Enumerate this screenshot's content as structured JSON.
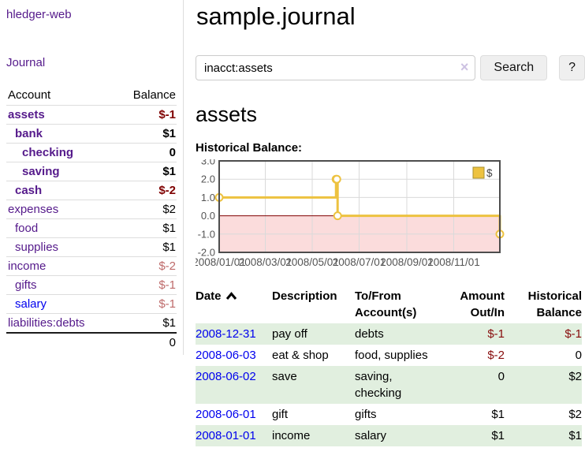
{
  "app": {
    "title": "hledger-web",
    "nav": {
      "journal": "Journal"
    }
  },
  "sidebar": {
    "headers": {
      "account": "Account",
      "balance": "Balance"
    },
    "accounts": [
      {
        "name": "assets",
        "balance": "$-1",
        "depth": 1,
        "bold": true,
        "link_color": "purple",
        "balance_style": "negstrong"
      },
      {
        "name": "bank",
        "balance": "$1",
        "depth": 2,
        "bold": true,
        "link_color": "purple",
        "balance_style": "plain"
      },
      {
        "name": "checking",
        "balance": "0",
        "depth": 3,
        "bold": true,
        "link_color": "purple",
        "balance_style": "plain"
      },
      {
        "name": "saving",
        "balance": "$1",
        "depth": 3,
        "bold": true,
        "link_color": "purple",
        "balance_style": "plain"
      },
      {
        "name": "cash",
        "balance": "$-2",
        "depth": 2,
        "bold": true,
        "link_color": "purple",
        "balance_style": "negstrong"
      },
      {
        "name": "expenses",
        "balance": "$2",
        "depth": 1,
        "bold": false,
        "link_color": "purple",
        "balance_style": "plain"
      },
      {
        "name": "food",
        "balance": "$1",
        "depth": 2,
        "bold": false,
        "link_color": "purple",
        "balance_style": "plain"
      },
      {
        "name": "supplies",
        "balance": "$1",
        "depth": 2,
        "bold": false,
        "link_color": "purple",
        "balance_style": "plain"
      },
      {
        "name": "income",
        "balance": "$-2",
        "depth": 1,
        "bold": false,
        "link_color": "purple",
        "balance_style": "negweak"
      },
      {
        "name": "gifts",
        "balance": "$-1",
        "depth": 2,
        "bold": false,
        "link_color": "purple",
        "balance_style": "negweak"
      },
      {
        "name": "salary",
        "balance": "$-1",
        "depth": 2,
        "bold": false,
        "link_color": "blue",
        "balance_style": "negweak"
      },
      {
        "name": "liabilities:debts",
        "balance": "$1",
        "depth": 1,
        "bold": false,
        "link_color": "purple",
        "balance_style": "plain"
      }
    ],
    "total": "0"
  },
  "main": {
    "title": "sample.journal",
    "search": {
      "value": "inacct:assets",
      "clear_icon": "×",
      "button": "Search",
      "help_button": "?"
    },
    "account_title": "assets",
    "chart_title": "Historical Balance:"
  },
  "chart_data": {
    "type": "line",
    "step": true,
    "title": "Historical Balance:",
    "series": [
      {
        "name": "$",
        "color": "#EDC240",
        "points": [
          [
            "2008-01-01",
            1
          ],
          [
            "2008-06-01",
            2
          ],
          [
            "2008-06-02",
            2
          ],
          [
            "2008-06-03",
            0
          ],
          [
            "2008-12-31",
            -1
          ]
        ]
      }
    ],
    "x_range": [
      "2008-01-01",
      "2008-12-31"
    ],
    "x_tick_labels": [
      "2008/01/01",
      "2008/03/01",
      "2008/05/01",
      "2008/07/01",
      "2008/09/01",
      "2008/11/01"
    ],
    "y_ticks": [
      "3.0",
      "2.0",
      "1.0",
      "0.0",
      "-1.0",
      "-2.0"
    ],
    "ylim": [
      -2,
      3
    ],
    "grid": true,
    "legend_position": "top-right",
    "negative_region_fill": "#FBDCDC",
    "zero_line_color": "#800000",
    "grid_color": "#DADADA",
    "border_color": "#4D4D4D",
    "axis_label_color": "#545454"
  },
  "register": {
    "headers": {
      "date": "Date",
      "description": "Description",
      "accounts": "To/From Account(s)",
      "amount": "Amount Out/In",
      "balance": "Historical Balance"
    },
    "rows": [
      {
        "date": "2008-12-31",
        "description": "pay off",
        "accounts": "debts",
        "amount": "$-1",
        "amount_neg": true,
        "balance": "$-1",
        "balance_neg": true
      },
      {
        "date": "2008-06-03",
        "description": "eat & shop",
        "accounts": "food, supplies",
        "amount": "$-2",
        "amount_neg": true,
        "balance": "0",
        "balance_neg": false
      },
      {
        "date": "2008-06-02",
        "description": "save",
        "accounts": "saving, checking",
        "amount": "0",
        "amount_neg": false,
        "balance": "$2",
        "balance_neg": false
      },
      {
        "date": "2008-06-01",
        "description": "gift",
        "accounts": "gifts",
        "amount": "$1",
        "amount_neg": false,
        "balance": "$2",
        "balance_neg": false
      },
      {
        "date": "2008-01-01",
        "description": "income",
        "accounts": "salary",
        "amount": "$1",
        "amount_neg": false,
        "balance": "$1",
        "balance_neg": false
      }
    ]
  },
  "colors": {
    "link_purple": "#551A8B",
    "link_blue": "#0000EE",
    "neg_strong": "#7F0000",
    "neg_weak": "#BE6A6A",
    "neg_table": "#870C0C",
    "row_green": "#E1EFDF",
    "chart_line": "#EDC240"
  }
}
